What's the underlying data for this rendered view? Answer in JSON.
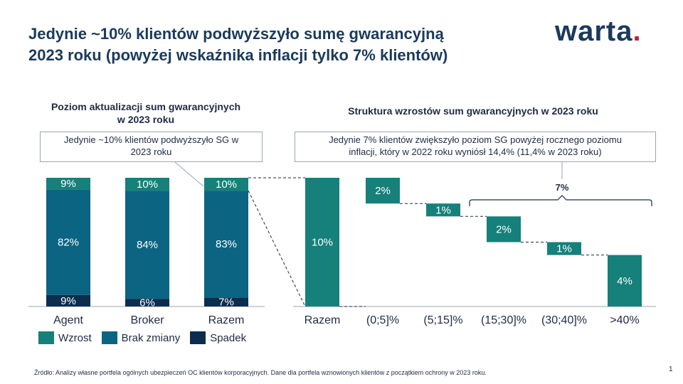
{
  "header": {
    "title_line1": "Jedynie ~10% klientów podwyższyło sumę gwarancyjną",
    "title_line2": "2023 roku (powyżej wskaźnika inflacji tylko 7% klientów)",
    "logo_text": "warta",
    "logo_dot": "."
  },
  "left": {
    "subtitle_line1": "Poziom aktualizacji sum gwarancyjnych",
    "subtitle_line2": "w 2023 roku",
    "callout_line1": "Jedynie ~10% klientów podwyższyło SG w",
    "callout_line2": "2023 roku"
  },
  "right": {
    "subtitle": "Struktura wzrostów sum gwarancyjnych w 2023 roku",
    "callout_line1": "Jedynie 7% klientów zwiększyło poziom SG powyżej rocznego poziomu",
    "callout_line2": "inflacji, który w 2022 roku wyniósł 14,4% (11,4% w 2023 roku)",
    "bracket_label": "7%"
  },
  "legend": {
    "items": [
      {
        "label": "Wzrost",
        "color": "#16807a"
      },
      {
        "label": "Brak zmiany",
        "color": "#0b6482"
      },
      {
        "label": "Spadek",
        "color": "#0d2d4f"
      }
    ]
  },
  "footer": {
    "source": "Źródło: Analizy własne portfela ogólnych ubezpieczeń OC klientów korporacyjnych. Dane dla portfela wznowionych klientów z początkiem ochrony w 2023 roku.",
    "page_number": "1"
  },
  "chart_data": [
    {
      "type": "bar",
      "stacked": true,
      "categories": [
        "Agent",
        "Broker",
        "Razem"
      ],
      "series": [
        {
          "name": "Spadek",
          "values": [
            9,
            6,
            7
          ],
          "labels": [
            "9%",
            "6%",
            "7%"
          ],
          "color": "#0d2d4f"
        },
        {
          "name": "Brak zmiany",
          "values": [
            82,
            84,
            83
          ],
          "labels": [
            "82%",
            "84%",
            "83%"
          ],
          "color": "#0b6482"
        },
        {
          "name": "Wzrost",
          "values": [
            9,
            10,
            10
          ],
          "labels": [
            "9%",
            "10%",
            "10%"
          ],
          "color": "#16807a"
        }
      ],
      "ylim": [
        0,
        100
      ]
    },
    {
      "type": "bar",
      "waterfall": true,
      "categories": [
        "Razem",
        "(0;5]%",
        "(5;15]%",
        "(15;30]%",
        "(30;40]%",
        ">40%"
      ],
      "values": [
        10,
        2,
        1,
        2,
        1,
        4
      ],
      "labels": [
        "10%",
        "2%",
        "1%",
        "2%",
        "1%",
        "4%"
      ],
      "color": "#16807a",
      "ylim": [
        0,
        10
      ]
    }
  ]
}
